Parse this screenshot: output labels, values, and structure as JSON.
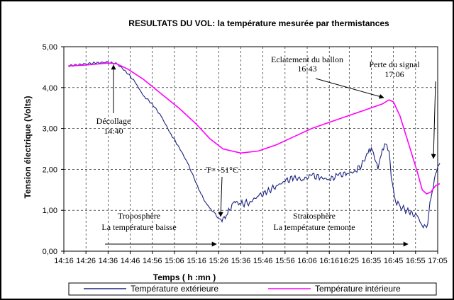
{
  "chart_data": {
    "type": "line",
    "title": "RESULTATS DU VOL: la température mesurée par thermistances",
    "xlabel": "Temps ( h :mn )",
    "ylabel": "Tension électrique (Volts)",
    "ylim": [
      0,
      5
    ],
    "y_ticks": [
      "0,00",
      "1,00",
      "2,00",
      "3,00",
      "4,00",
      "5,00"
    ],
    "x_ticks": [
      "14:16",
      "14:26",
      "14:36",
      "14:46",
      "14:56",
      "15:06",
      "15:16",
      "15:26",
      "15:36",
      "15:46",
      "15:56",
      "16:06",
      "16:16",
      "16:25",
      "16:35",
      "16:45",
      "16:55",
      "17:05"
    ],
    "x_range_minutes": [
      856,
      1025
    ],
    "grid": true,
    "legend_position": "bottom",
    "colors": {
      "exterior": "#1a237e",
      "interior": "#ff00ff"
    },
    "series": [
      {
        "name": "Température extérieure",
        "x": [
          "14:18",
          "14:26",
          "14:30",
          "14:35",
          "14:38",
          "14:40",
          "14:44",
          "14:48",
          "14:52",
          "14:56",
          "15:00",
          "15:04",
          "15:08",
          "15:12",
          "15:16",
          "15:18",
          "15:20",
          "15:22",
          "15:24",
          "15:25",
          "15:26",
          "15:27",
          "15:28",
          "15:30",
          "15:32",
          "15:34",
          "15:36",
          "15:40",
          "15:44",
          "15:48",
          "15:52",
          "15:56",
          "16:00",
          "16:04",
          "16:08",
          "16:12",
          "16:16",
          "16:20",
          "16:24",
          "16:28",
          "16:32",
          "16:34",
          "16:36",
          "16:38",
          "16:40",
          "16:42",
          "16:43",
          "16:44",
          "16:46",
          "16:48",
          "16:52",
          "16:56",
          "16:58",
          "17:00",
          "17:02",
          "17:04",
          "17:06"
        ],
        "values": [
          4.53,
          4.58,
          4.6,
          4.62,
          4.6,
          4.58,
          4.4,
          4.15,
          3.8,
          3.6,
          3.3,
          2.9,
          2.55,
          2.15,
          1.65,
          1.4,
          1.2,
          1.05,
          0.95,
          0.85,
          0.8,
          0.78,
          0.82,
          0.9,
          1.15,
          1.22,
          1.15,
          1.2,
          1.35,
          1.45,
          1.6,
          1.7,
          1.8,
          1.75,
          1.85,
          1.8,
          1.75,
          1.85,
          1.9,
          1.95,
          2.2,
          2.5,
          2.4,
          2.0,
          2.5,
          2.6,
          2.45,
          1.8,
          1.2,
          1.1,
          0.95,
          0.85,
          0.62,
          0.58,
          1.3,
          1.9,
          2.15
        ]
      },
      {
        "name": "Température intérieure",
        "x": [
          "14:18",
          "14:26",
          "14:36",
          "14:40",
          "14:45",
          "14:52",
          "15:00",
          "15:08",
          "15:16",
          "15:22",
          "15:28",
          "15:36",
          "15:44",
          "15:52",
          "16:00",
          "16:08",
          "16:16",
          "16:24",
          "16:32",
          "16:40",
          "16:43",
          "16:45",
          "16:48",
          "16:52",
          "16:56",
          "16:58",
          "17:00",
          "17:02",
          "17:04",
          "17:06"
        ],
        "values": [
          4.53,
          4.55,
          4.6,
          4.58,
          4.45,
          4.2,
          3.85,
          3.5,
          3.1,
          2.75,
          2.5,
          2.4,
          2.45,
          2.6,
          2.8,
          3.0,
          3.15,
          3.3,
          3.45,
          3.6,
          3.7,
          3.65,
          3.3,
          2.6,
          1.9,
          1.5,
          1.4,
          1.45,
          1.6,
          1.65
        ]
      }
    ],
    "annotations": [
      {
        "lines": [
          "Décollage",
          "14:40"
        ]
      },
      {
        "lines": [
          "Eclatement du ballon",
          "16:43"
        ]
      },
      {
        "lines": [
          "Perte du signal",
          "17:06"
        ]
      },
      {
        "lines": [
          "T= -51°C"
        ]
      },
      {
        "lines": [
          "Troposphère",
          "La température baisse"
        ]
      },
      {
        "lines": [
          "Stratosphère",
          "La température remonte"
        ]
      }
    ]
  }
}
